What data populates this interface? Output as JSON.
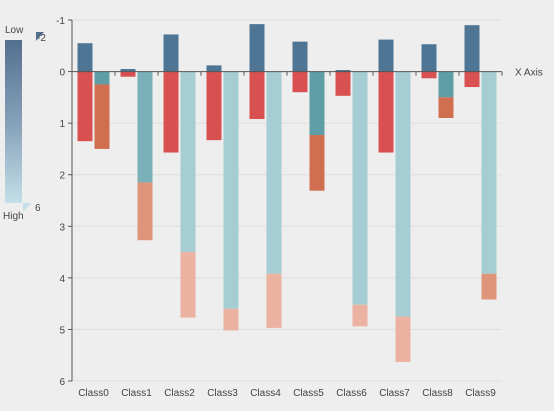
{
  "chart_data": {
    "type": "bar",
    "xlabel": "X Axis",
    "categories": [
      "Class0",
      "Class1",
      "Class2",
      "Class3",
      "Class4",
      "Class5",
      "Class6",
      "Class7",
      "Class8",
      "Class9"
    ],
    "y_axis": {
      "range": [
        -1,
        6
      ],
      "inverted": true,
      "ticks": [
        -1,
        0,
        1,
        2,
        3,
        4,
        5,
        6
      ]
    },
    "series": [
      {
        "stack": "a",
        "values": [
          -0.55,
          -0.05,
          -0.72,
          -0.12,
          -0.92,
          -0.58,
          -0.03,
          -0.62,
          -0.53,
          -0.9
        ]
      },
      {
        "stack": "a",
        "values": [
          1.35,
          0.1,
          1.57,
          1.33,
          0.92,
          0.4,
          0.47,
          1.57,
          0.13,
          0.3
        ]
      },
      {
        "stack": "b",
        "values": [
          0.25,
          2.15,
          3.5,
          4.6,
          3.92,
          1.23,
          4.52,
          4.75,
          0.5,
          3.92
        ]
      },
      {
        "stack": "b",
        "values": [
          1.25,
          1.12,
          1.27,
          0.42,
          1.05,
          1.08,
          0.42,
          0.88,
          0.4,
          0.5
        ]
      }
    ],
    "visual_map": {
      "text_low": "Low",
      "text_high": "High",
      "min": -2,
      "max": 6,
      "min_label": "-2",
      "max_label": "6",
      "colors_low_to_high": [
        "#536f8e",
        "#5f7f9e",
        "#c4dfe8"
      ]
    },
    "colors": {
      "negative_a": "#4e7594",
      "positive_a": "#d85150",
      "stack_b": [
        "#5f9ea7",
        "#7ab0b8",
        "#a6cdd3"
      ],
      "stack_b_top": [
        "#d06f4f",
        "#df957a",
        "#ebb1a1"
      ]
    }
  }
}
